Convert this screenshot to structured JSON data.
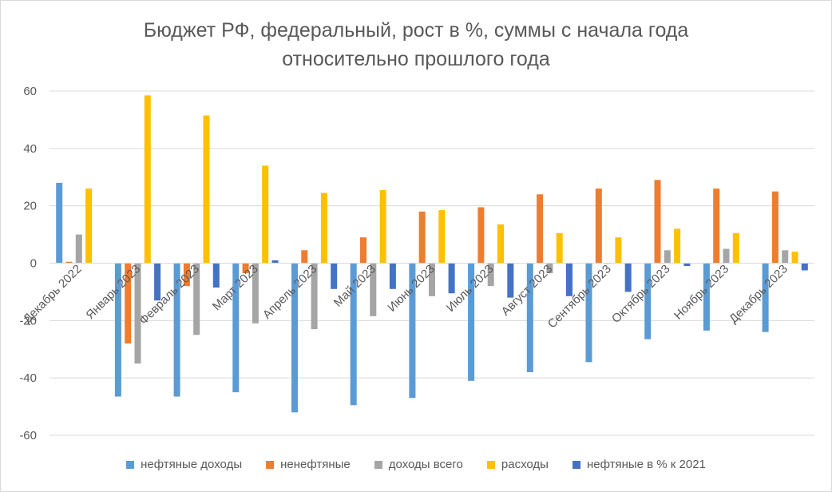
{
  "chart_data": {
    "type": "bar",
    "title": "Бюджет РФ, федеральный, рост в %, суммы с начала года",
    "subtitle": "относительно прошлого года",
    "xlabel": "",
    "ylabel": "",
    "ylim": [
      -60,
      60
    ],
    "yticks": [
      60,
      40,
      20,
      0,
      -20,
      -40,
      -60
    ],
    "grid": true,
    "legend_position": "bottom",
    "categories": [
      "Декабрь 2022",
      "Январь 2023",
      "Февраль 2023",
      "Март 2023",
      "Апрель 2023",
      "Май 2023",
      "Июнь 2023",
      "Июль 2023",
      "Август 2023",
      "Сентябрь 2023",
      "Октябрь 2023",
      "Ноябрь 2023",
      "Декабрь 2023"
    ],
    "series": [
      {
        "name": "нефтяные доходы",
        "color": "#5b9bd5",
        "values": [
          28,
          -46.5,
          -46.5,
          -45,
          -52,
          -49.5,
          -47,
          -41,
          -38,
          -34.5,
          -26.5,
          -23.5,
          -24
        ]
      },
      {
        "name": "ненефтяные",
        "color": "#ed7d31",
        "values": [
          0.5,
          -28,
          -8,
          -3.5,
          4.5,
          9,
          18,
          19.5,
          24,
          26,
          29,
          26,
          25
        ]
      },
      {
        "name": "доходы всего",
        "color": "#a5a5a5",
        "values": [
          10,
          -35,
          -25,
          -21,
          -23,
          -18.5,
          -11.5,
          -8,
          -3.5,
          0,
          4.5,
          5,
          4.5
        ]
      },
      {
        "name": "расходы",
        "color": "#ffc000",
        "values": [
          26,
          58.5,
          51.5,
          34,
          24.5,
          25.5,
          18.5,
          13.5,
          10.5,
          9,
          12,
          10.5,
          4
        ]
      },
      {
        "name": "нефтяные в % к 2021",
        "color": "#4472c4",
        "values": [
          null,
          -13,
          -8.5,
          1,
          -9,
          -9,
          -10.5,
          -12,
          -11.5,
          -10,
          -1,
          null,
          -2.5
        ]
      }
    ]
  }
}
